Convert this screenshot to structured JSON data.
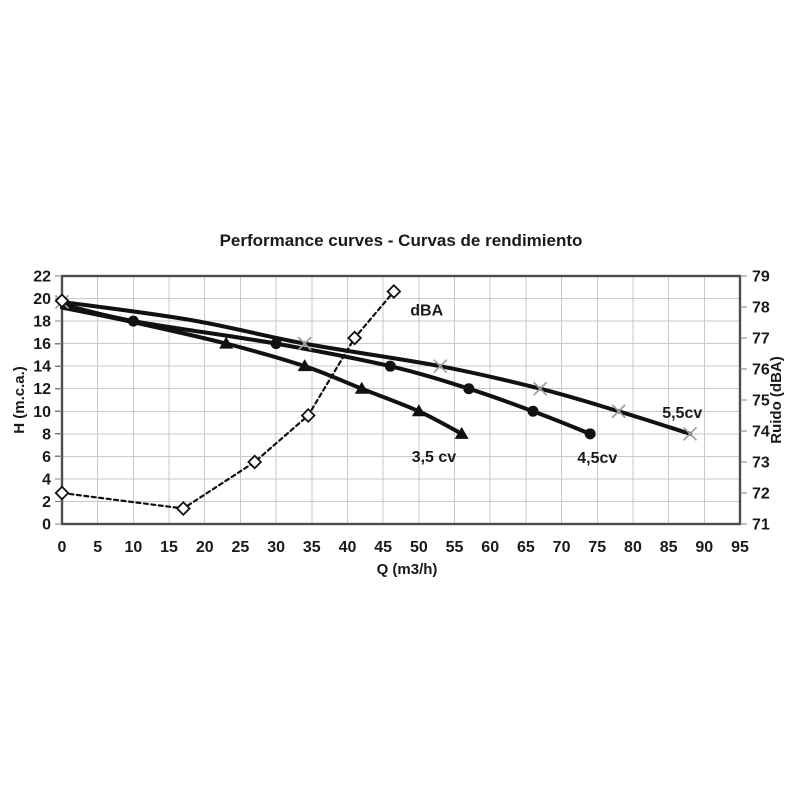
{
  "chart_data": {
    "type": "line",
    "title": "Performance curves - Curvas de rendimiento",
    "xlabel": "Q (m3/h)",
    "ylabel_left": "H (m.c.a.)",
    "ylabel_right": "Ruido (dBA)",
    "x_axis": {
      "min": 0,
      "max": 95,
      "tick_step": 5
    },
    "y_left": {
      "min": 0,
      "max": 22,
      "tick_step": 2
    },
    "y_right": {
      "min": 71,
      "max": 79,
      "tick_step": 1
    },
    "grid": true,
    "legend_position": "none",
    "colors": {
      "curve": "#111111",
      "grid": "#c9c9c9",
      "frame": "#4d4d4d",
      "tick": "#808080",
      "x_marker": "#9e9e9e",
      "text": "#1a1a1a",
      "background": "#ffffff"
    },
    "series": [
      {
        "name": "pump-3-5cv",
        "label": "3,5 cv",
        "axis": "left",
        "line": "solid",
        "line_width": 4,
        "color": "#111111",
        "marker": "triangle",
        "marker_color": "#111111",
        "points": [
          [
            0,
            19.2
          ],
          [
            10,
            17.9
          ],
          [
            23,
            16
          ],
          [
            34,
            14
          ],
          [
            42,
            12
          ],
          [
            50,
            10
          ],
          [
            56,
            8
          ]
        ],
        "marker_points": [
          [
            23,
            16
          ],
          [
            34,
            14
          ],
          [
            42,
            12
          ],
          [
            50,
            10
          ],
          [
            56,
            8
          ]
        ],
        "label_anchor": {
          "q": 49.0,
          "h": 5.5
        }
      },
      {
        "name": "pump-4-5cv",
        "label": "4,5cv",
        "axis": "left",
        "line": "solid",
        "line_width": 4,
        "color": "#111111",
        "marker": "circle",
        "marker_color": "#111111",
        "points": [
          [
            0,
            19.5
          ],
          [
            10,
            18
          ],
          [
            30,
            16
          ],
          [
            46,
            14
          ],
          [
            57,
            12
          ],
          [
            66,
            10
          ],
          [
            74,
            8
          ]
        ],
        "marker_points": [
          [
            10,
            18
          ],
          [
            30,
            16
          ],
          [
            46,
            14
          ],
          [
            57,
            12
          ],
          [
            66,
            10
          ],
          [
            74,
            8
          ]
        ],
        "label_anchor": {
          "q": 72.2,
          "h": 5.4
        }
      },
      {
        "name": "pump-5-5cv",
        "label": "5,5cv",
        "axis": "left",
        "line": "solid",
        "line_width": 4,
        "color": "#111111",
        "marker": "x",
        "marker_color": "#9e9e9e",
        "points": [
          [
            0,
            19.7
          ],
          [
            18,
            18.1
          ],
          [
            34,
            16
          ],
          [
            53,
            14
          ],
          [
            67,
            12
          ],
          [
            78,
            10
          ],
          [
            88,
            8
          ]
        ],
        "marker_points": [
          [
            0,
            19.7
          ],
          [
            34,
            16
          ],
          [
            53,
            14
          ],
          [
            67,
            12
          ],
          [
            78,
            10
          ],
          [
            88,
            8
          ]
        ],
        "label_anchor": {
          "q": 84.1,
          "h": 9.4
        }
      },
      {
        "name": "noise-dba",
        "label": "dBA",
        "axis": "right",
        "line": "dashed",
        "line_width": 2.2,
        "color": "#111111",
        "marker": "diamond",
        "marker_color": "#111111",
        "points": [
          [
            0,
            72
          ],
          [
            17,
            71.5
          ],
          [
            27,
            73
          ],
          [
            34.5,
            74.5
          ],
          [
            41,
            77
          ],
          [
            46.5,
            78.5
          ]
        ],
        "marker_points": [
          [
            0,
            72
          ],
          [
            17,
            71.5
          ],
          [
            27,
            73
          ],
          [
            34.5,
            74.5
          ],
          [
            41,
            77
          ],
          [
            46.5,
            78.5
          ]
        ],
        "label_anchor": {
          "q": 48.8,
          "h": 18.5
        }
      }
    ],
    "start_marker": {
      "type": "diamond",
      "axis": "left",
      "q": 0,
      "h": 19.8
    }
  }
}
